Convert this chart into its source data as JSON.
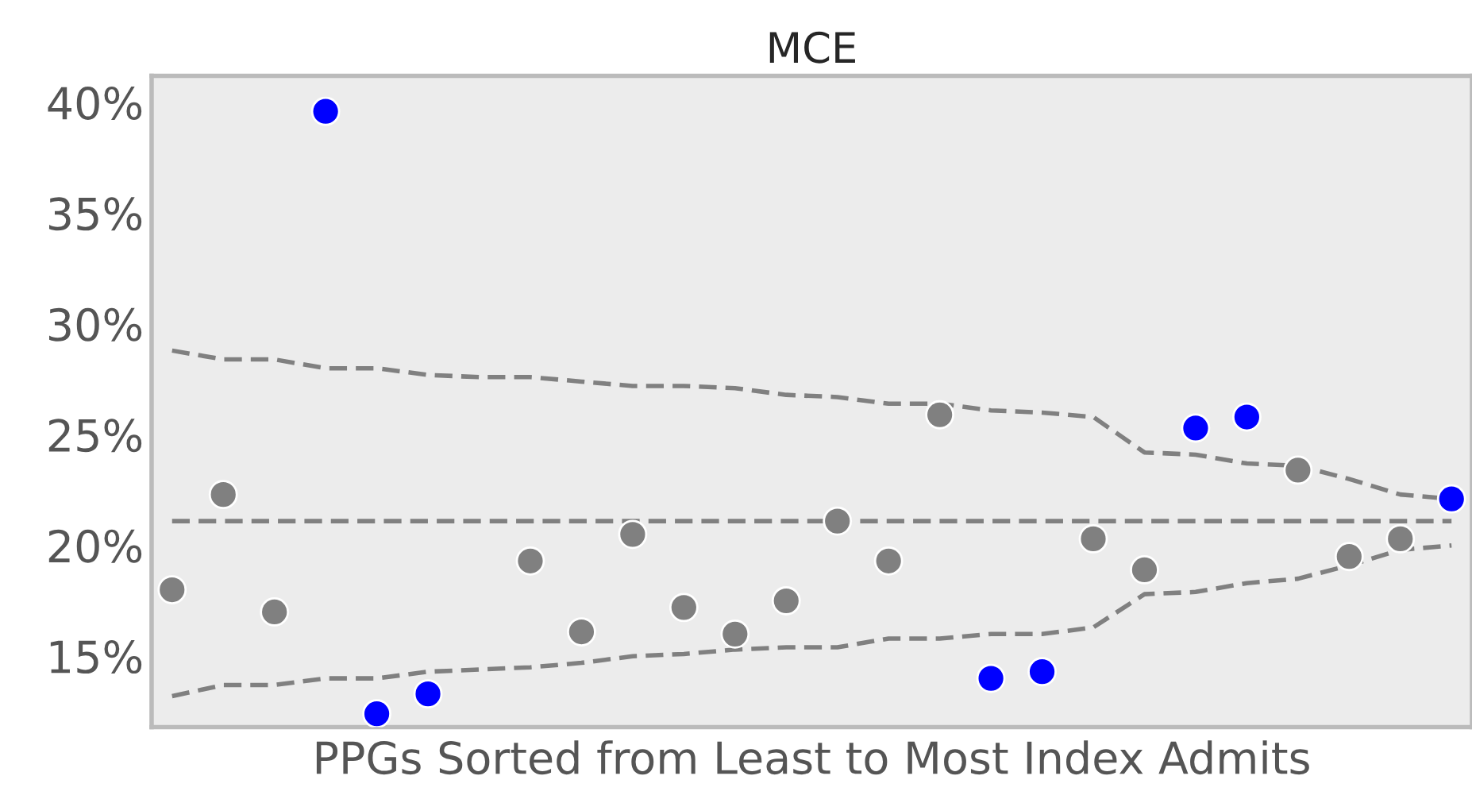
{
  "chart_data": {
    "type": "scatter",
    "title": "MCE",
    "xlabel": "PPGs Sorted from Least to Most Index Admits",
    "categories": [
      null,
      null,
      null,
      null,
      null,
      null,
      null,
      null,
      null,
      null,
      null,
      null,
      null,
      null,
      null,
      null,
      null,
      null,
      null,
      null,
      null,
      null,
      null,
      null,
      null,
      null
    ],
    "series": [
      {
        "type": "line",
        "color": "#808080",
        "line_style": "dashed",
        "marker": "none",
        "values": [
          28.8,
          28.4,
          28.4,
          28.0,
          28.0,
          27.7,
          27.6,
          27.6,
          27.4,
          27.2,
          27.2,
          27.1,
          26.8,
          26.7,
          26.4,
          26.4,
          26.1,
          26.0,
          25.8,
          24.2,
          24.1,
          23.7,
          23.6,
          23.0,
          22.3,
          22.1
        ]
      },
      {
        "type": "line",
        "color": "#808080",
        "line_style": "dashed",
        "marker": "none",
        "values": [
          21.1,
          21.1,
          21.1,
          21.1,
          21.1,
          21.1,
          21.1,
          21.1,
          21.1,
          21.1,
          21.1,
          21.1,
          21.1,
          21.1,
          21.1,
          21.1,
          21.1,
          21.1,
          21.1,
          21.1,
          21.1,
          21.1,
          21.1,
          21.1,
          21.1,
          21.1
        ]
      },
      {
        "type": "line",
        "color": "#808080",
        "line_style": "dashed",
        "marker": "none",
        "values": [
          13.2,
          13.7,
          13.7,
          14.0,
          14.0,
          14.3,
          14.4,
          14.5,
          14.7,
          15.0,
          15.1,
          15.3,
          15.4,
          15.4,
          15.8,
          15.8,
          16.0,
          16.0,
          16.3,
          17.8,
          17.9,
          18.3,
          18.5,
          19.1,
          19.8,
          20.0
        ]
      },
      {
        "marker": "circle",
        "values": [
          18.0,
          22.3,
          17.0,
          39.6,
          12.4,
          13.3,
          null,
          19.3,
          16.1,
          20.5,
          17.2,
          16.0,
          17.5,
          21.1,
          19.3,
          25.9,
          14.0,
          14.3,
          20.3,
          18.9,
          25.3,
          25.8,
          23.4,
          19.5,
          20.3,
          22.1
        ],
        "colors": [
          "#808080",
          "#808080",
          "#808080",
          "#0000ff",
          "#0000ff",
          "#0000ff",
          "#808080",
          "#808080",
          "#808080",
          "#808080",
          "#808080",
          "#808080",
          "#808080",
          "#808080",
          "#808080",
          "#808080",
          "#0000ff",
          "#0000ff",
          "#808080",
          "#808080",
          "#0000ff",
          "#0000ff",
          "#808080",
          "#808080",
          "#808080",
          "#0000ff"
        ]
      }
    ],
    "ylim": [
      11.8,
      41.2
    ],
    "yticks": [
      {
        "value": 15,
        "label": "15%"
      },
      {
        "value": 20,
        "label": "20%"
      },
      {
        "value": 25,
        "label": "25%"
      },
      {
        "value": 30,
        "label": "30%"
      },
      {
        "value": 35,
        "label": "35%"
      },
      {
        "value": 40,
        "label": "40%"
      }
    ],
    "tick_labels": "y",
    "grid": false,
    "legend": false
  }
}
